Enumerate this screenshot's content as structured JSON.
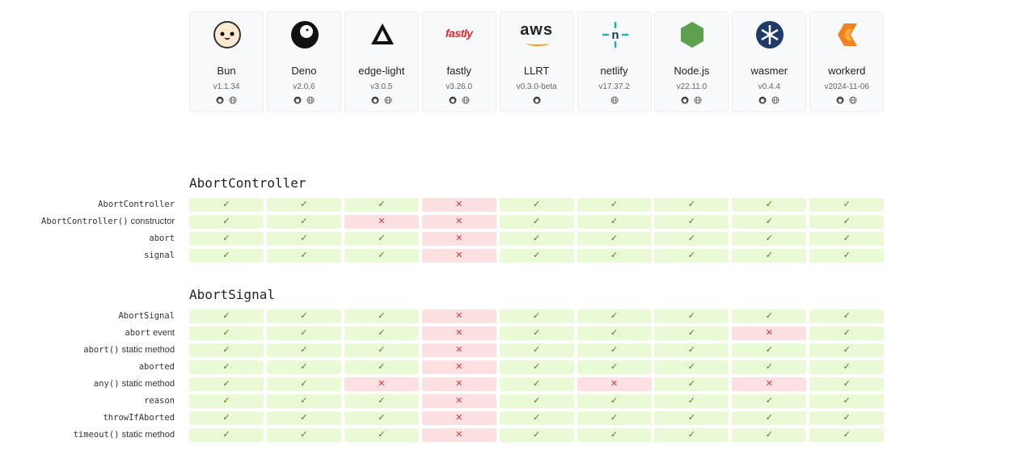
{
  "symbols": {
    "supported": "✓",
    "unsupported": "✕"
  },
  "runtimes": [
    {
      "name": "Bun",
      "version": "v1.1.34",
      "github": true,
      "website": true
    },
    {
      "name": "Deno",
      "version": "v2.0.6",
      "github": true,
      "website": true
    },
    {
      "name": "edge-light",
      "version": "v3.0.5",
      "github": true,
      "website": true
    },
    {
      "name": "fastly",
      "version": "v3.26.0",
      "github": true,
      "website": true,
      "logo_text": "fastly"
    },
    {
      "name": "LLRT",
      "version": "v0.3.0-beta",
      "github": true,
      "website": false,
      "logo_text": "aws"
    },
    {
      "name": "netlify",
      "version": "v17.37.2",
      "github": false,
      "website": true
    },
    {
      "name": "Node.js",
      "version": "v22.11.0",
      "github": true,
      "website": true
    },
    {
      "name": "wasmer",
      "version": "v0.4.4",
      "github": true,
      "website": true
    },
    {
      "name": "workerd",
      "version": "v2024-11-06",
      "github": true,
      "website": true
    }
  ],
  "sections": [
    {
      "title": "AbortController",
      "rows": [
        {
          "code": "AbortController",
          "support": [
            true,
            true,
            true,
            false,
            true,
            true,
            true,
            true,
            true
          ]
        },
        {
          "code": "AbortController()",
          "note": "constructor",
          "support": [
            true,
            true,
            false,
            false,
            true,
            true,
            true,
            true,
            true
          ]
        },
        {
          "code": "abort",
          "support": [
            true,
            true,
            true,
            false,
            true,
            true,
            true,
            true,
            true
          ]
        },
        {
          "code": "signal",
          "support": [
            true,
            true,
            true,
            false,
            true,
            true,
            true,
            true,
            true
          ]
        }
      ]
    },
    {
      "title": "AbortSignal",
      "rows": [
        {
          "code": "AbortSignal",
          "support": [
            true,
            true,
            true,
            false,
            true,
            true,
            true,
            true,
            true
          ]
        },
        {
          "code": "abort",
          "note": "event",
          "support": [
            true,
            true,
            true,
            false,
            true,
            true,
            true,
            false,
            true
          ]
        },
        {
          "code": "abort()",
          "note": "static method",
          "support": [
            true,
            true,
            true,
            false,
            true,
            true,
            true,
            true,
            true
          ]
        },
        {
          "code": "aborted",
          "support": [
            true,
            true,
            true,
            false,
            true,
            true,
            true,
            true,
            true
          ]
        },
        {
          "code": "any()",
          "note": "static method",
          "support": [
            true,
            true,
            false,
            false,
            true,
            false,
            true,
            false,
            true
          ]
        },
        {
          "code": "reason",
          "support": [
            true,
            true,
            true,
            false,
            true,
            true,
            true,
            true,
            true
          ]
        },
        {
          "code": "throwIfAborted",
          "support": [
            true,
            true,
            true,
            false,
            true,
            true,
            true,
            true,
            true
          ]
        },
        {
          "code": "timeout()",
          "note": "static method",
          "support": [
            true,
            true,
            true,
            false,
            true,
            true,
            true,
            true,
            true
          ]
        }
      ]
    }
  ]
}
